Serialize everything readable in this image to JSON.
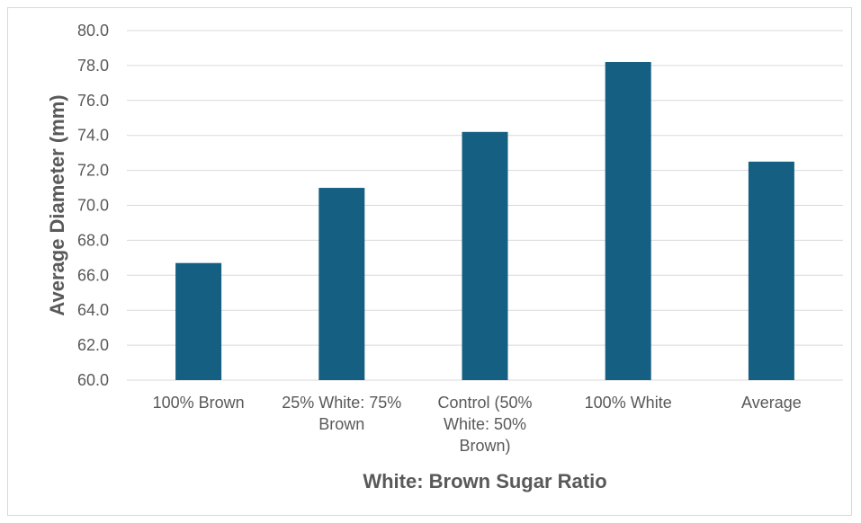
{
  "chart_data": {
    "type": "bar",
    "title": "",
    "xlabel": "White: Brown Sugar Ratio",
    "ylabel": "Average Diameter (mm)",
    "ylim": [
      60,
      80
    ],
    "yticks": [
      "60.0",
      "62.0",
      "64.0",
      "66.0",
      "68.0",
      "70.0",
      "72.0",
      "74.0",
      "76.0",
      "78.0",
      "80.0"
    ],
    "grid": true,
    "legend": "none",
    "bar_color": "#155f82",
    "categories": [
      [
        "100% Brown"
      ],
      [
        "25% White: 75%",
        "Brown"
      ],
      [
        "Control (50%",
        "White: 50%",
        "Brown)"
      ],
      [
        "100% White"
      ],
      [
        "Average"
      ]
    ],
    "values": [
      66.7,
      71.0,
      74.2,
      78.2,
      72.5
    ]
  }
}
